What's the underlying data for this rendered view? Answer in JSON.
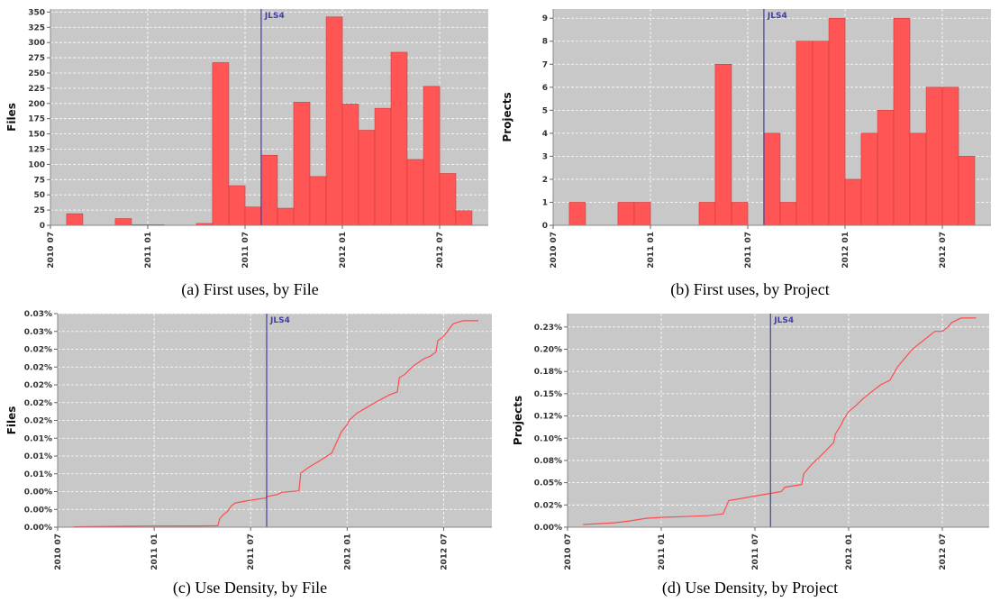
{
  "chart_data": [
    {
      "type": "bar",
      "caption": "(a) First uses, by File",
      "ylabel": "Files",
      "xlim": [
        2010.5,
        2012.75
      ],
      "ylim": [
        0,
        355
      ],
      "yticks": [
        0,
        25,
        50,
        75,
        100,
        125,
        150,
        175,
        200,
        225,
        250,
        275,
        300,
        325,
        350
      ],
      "ytick_labels": [
        "0",
        "25",
        "50",
        "75",
        "100",
        "125",
        "150",
        "175",
        "200",
        "225",
        "250",
        "275",
        "300",
        "325",
        "350"
      ],
      "xticks": [
        2010.5,
        2011.0,
        2011.5,
        2012.0,
        2012.5
      ],
      "xtick_labels": [
        "2010 07",
        "2011 01",
        "2011 07",
        "2012 01",
        "2012 07"
      ],
      "bar_width": 0.0833,
      "bar_starts": [
        2010.583,
        2010.667,
        2010.75,
        2010.833,
        2010.917,
        2011.0,
        2011.083,
        2011.167,
        2011.25,
        2011.333,
        2011.417,
        2011.5,
        2011.583,
        2011.667,
        2011.75,
        2011.833,
        2011.917,
        2012.0,
        2012.083,
        2012.167,
        2012.25,
        2012.333,
        2012.417,
        2012.5,
        2012.583
      ],
      "values": [
        19,
        0,
        0,
        11,
        1,
        1,
        0,
        0,
        3,
        267,
        65,
        30,
        115,
        28,
        202,
        80,
        342,
        199,
        156,
        192,
        284,
        108,
        228,
        85,
        24
      ],
      "marker": {
        "x": 2011.583,
        "label": "JLS4"
      },
      "grid": true,
      "colors": {
        "bar": "#ff5555",
        "bar_edge": "#cc3b3b",
        "background": "#c8c8c8",
        "marker": "#4040a0"
      }
    },
    {
      "type": "bar",
      "caption": "(b) First uses, by Project",
      "ylabel": "Projects",
      "xlim": [
        2010.5,
        2012.75
      ],
      "ylim": [
        0,
        9.4
      ],
      "yticks": [
        0,
        1,
        2,
        3,
        4,
        5,
        6,
        7,
        8,
        9
      ],
      "ytick_labels": [
        "0",
        "1",
        "2",
        "3",
        "4",
        "5",
        "6",
        "7",
        "8",
        "9"
      ],
      "xticks": [
        2010.5,
        2011.0,
        2011.5,
        2012.0,
        2012.5
      ],
      "xtick_labels": [
        "2010 07",
        "2011 01",
        "2011 07",
        "2012 01",
        "2012 07"
      ],
      "bar_width": 0.0833,
      "bar_starts": [
        2010.583,
        2010.667,
        2010.75,
        2010.833,
        2010.917,
        2011.0,
        2011.083,
        2011.167,
        2011.25,
        2011.333,
        2011.417,
        2011.5,
        2011.583,
        2011.667,
        2011.75,
        2011.833,
        2011.917,
        2012.0,
        2012.083,
        2012.167,
        2012.25,
        2012.333,
        2012.417,
        2012.5,
        2012.583
      ],
      "values": [
        1,
        0,
        0,
        1,
        1,
        0,
        0,
        0,
        1,
        7,
        1,
        0,
        4,
        1,
        8,
        8,
        9,
        2,
        4,
        5,
        9,
        4,
        6,
        6,
        3
      ],
      "marker": {
        "x": 2011.583,
        "label": "JLS4"
      },
      "grid": true,
      "colors": {
        "bar": "#ff5555",
        "bar_edge": "#cc3b3b",
        "background": "#c8c8c8",
        "marker": "#4040a0"
      }
    },
    {
      "type": "line",
      "caption": "(c) Use Density, by File",
      "ylabel": "Files",
      "xlim": [
        2010.5,
        2012.75
      ],
      "ylim": [
        0,
        0.03
      ],
      "yticks": [
        0,
        0.0025,
        0.005,
        0.0075,
        0.01,
        0.0125,
        0.015,
        0.0175,
        0.02,
        0.0225,
        0.025,
        0.0275,
        0.03
      ],
      "ytick_labels": [
        "0.00%",
        "0.00%",
        "0.00%",
        "0.01%",
        "0.01%",
        "0.01%",
        "0.02%",
        "0.02%",
        "0.02%",
        "0.02%",
        "0.02%",
        "0.03%",
        "0.03%"
      ],
      "xticks": [
        2010.5,
        2011.0,
        2011.5,
        2012.0,
        2012.5
      ],
      "xtick_labels": [
        "2010 07",
        "2011 01",
        "2011 07",
        "2012 01",
        "2012 07"
      ],
      "series": [
        {
          "x": [
            2010.583,
            2010.75,
            2010.833,
            2010.917,
            2011.0,
            2011.25,
            2011.33,
            2011.34,
            2011.36,
            2011.38,
            2011.4,
            2011.42,
            2011.5,
            2011.58,
            2011.583,
            2011.64,
            2011.66,
            2011.75,
            2011.76,
            2011.8,
            2011.85,
            2011.92,
            2011.93,
            2011.96,
            2011.97,
            2012.0,
            2012.01,
            2012.05,
            2012.1,
            2012.15,
            2012.22,
            2012.26,
            2012.27,
            2012.3,
            2012.34,
            2012.4,
            2012.43,
            2012.46,
            2012.47,
            2012.5,
            2012.53,
            2012.55,
            2012.6,
            2012.68
          ],
          "y": [
            5e-05,
            0.0001,
            0.00013,
            0.00015,
            0.00016,
            0.00018,
            0.0002,
            0.0012,
            0.0018,
            0.0022,
            0.003,
            0.0034,
            0.0038,
            0.0041,
            0.0043,
            0.0046,
            0.0049,
            0.0051,
            0.0076,
            0.0084,
            0.0092,
            0.0104,
            0.011,
            0.0128,
            0.0134,
            0.0144,
            0.015,
            0.016,
            0.0168,
            0.0176,
            0.0186,
            0.019,
            0.021,
            0.0215,
            0.0226,
            0.0237,
            0.024,
            0.0246,
            0.0262,
            0.0268,
            0.0279,
            0.0286,
            0.029,
            0.029
          ]
        }
      ],
      "marker": {
        "x": 2011.583,
        "label": "JLS4"
      },
      "grid": true,
      "colors": {
        "line": "#ff4c4c",
        "background": "#c8c8c8",
        "marker": "#4040a0"
      }
    },
    {
      "type": "line",
      "caption": "(d) Use Density, by Project",
      "ylabel": "Projects",
      "xlim": [
        2010.5,
        2012.75
      ],
      "ylim": [
        0,
        0.0024
      ],
      "yticks": [
        0,
        0.00025,
        0.0005,
        0.00075,
        0.001,
        0.00125,
        0.0015,
        0.00175,
        0.002,
        0.00225
      ],
      "ytick_labels": [
        "0.00%",
        "0.02%",
        "0.05%",
        "0.08%",
        "0.10%",
        "0.12%",
        "0.15%",
        "0.18%",
        "0.20%",
        "0.23%"
      ],
      "xticks": [
        2010.5,
        2011.0,
        2011.5,
        2012.0,
        2012.5
      ],
      "xtick_labels": [
        "2010 07",
        "2011 01",
        "2011 07",
        "2012 01",
        "2012 07"
      ],
      "series": [
        {
          "x": [
            2010.583,
            2010.75,
            2010.83,
            2010.92,
            2011.0,
            2011.25,
            2011.33,
            2011.34,
            2011.36,
            2011.42,
            2011.5,
            2011.583,
            2011.64,
            2011.66,
            2011.75,
            2011.76,
            2011.8,
            2011.85,
            2011.92,
            2011.93,
            2011.96,
            2011.97,
            2012.0,
            2012.03,
            2012.08,
            2012.17,
            2012.22,
            2012.26,
            2012.3,
            2012.34,
            2012.4,
            2012.43,
            2012.46,
            2012.5,
            2012.53,
            2012.55,
            2012.6,
            2012.68
          ],
          "y": [
            3e-05,
            5e-05,
            7e-05,
            0.0001,
            0.00011,
            0.00013,
            0.00015,
            0.0002,
            0.0003,
            0.00032,
            0.00035,
            0.00038,
            0.0004,
            0.00045,
            0.00048,
            0.0006,
            0.0007,
            0.0008,
            0.00095,
            0.00105,
            0.00115,
            0.0012,
            0.0013,
            0.00135,
            0.00145,
            0.0016,
            0.00165,
            0.0018,
            0.0019,
            0.002,
            0.0021,
            0.00215,
            0.0022,
            0.0022,
            0.00225,
            0.0023,
            0.00235,
            0.00235
          ]
        }
      ],
      "marker": {
        "x": 2011.583,
        "label": "JLS4"
      },
      "grid": true,
      "colors": {
        "line": "#ff4c4c",
        "background": "#c8c8c8",
        "marker": "#4040a0"
      }
    }
  ]
}
